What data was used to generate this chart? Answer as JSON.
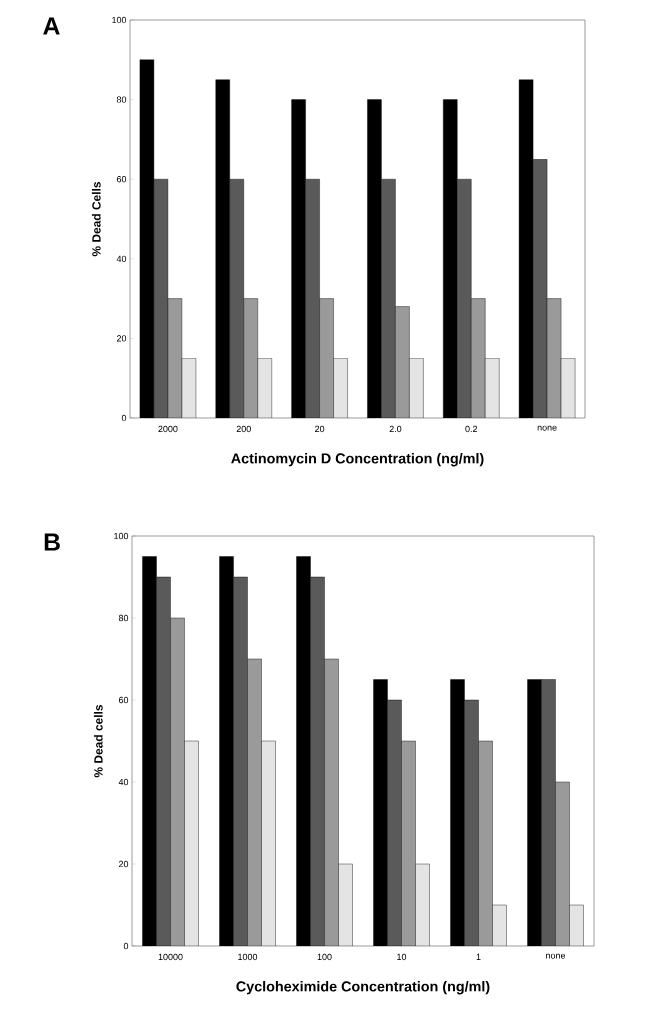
{
  "chart_data": [
    {
      "type": "bar",
      "title": "A",
      "xlabel": "Actinomycin D Concentration (ng/ml)",
      "ylabel": "% Dead Cells",
      "categories": [
        "2000",
        "200",
        "20",
        "2.0",
        "0.2",
        "none"
      ],
      "series": [
        {
          "color": "#000000",
          "values": [
            90,
            85,
            80,
            80,
            80,
            85
          ]
        },
        {
          "color": "#5a5a5a",
          "values": [
            60,
            60,
            60,
            60,
            60,
            65
          ]
        },
        {
          "color": "#9a9a9a",
          "values": [
            30,
            30,
            30,
            28,
            30,
            30
          ]
        },
        {
          "color": "#e4e4e4",
          "values": [
            15,
            15,
            15,
            15,
            15,
            15
          ]
        }
      ],
      "ylim": [
        0,
        100
      ],
      "yticks": [
        0,
        20,
        40,
        60,
        80,
        100
      ]
    },
    {
      "type": "bar",
      "title": "B",
      "xlabel": "Cycloheximide Concentration (ng/ml)",
      "ylabel": "% Dead cells",
      "categories": [
        "10000",
        "1000",
        "100",
        "10",
        "1",
        "none"
      ],
      "series": [
        {
          "color": "#000000",
          "values": [
            95,
            95,
            95,
            65,
            65,
            65
          ]
        },
        {
          "color": "#5a5a5a",
          "values": [
            90,
            90,
            90,
            60,
            60,
            65
          ]
        },
        {
          "color": "#9a9a9a",
          "values": [
            80,
            70,
            70,
            50,
            50,
            40
          ]
        },
        {
          "color": "#e4e4e4",
          "values": [
            50,
            50,
            20,
            20,
            10,
            10
          ]
        }
      ],
      "ylim": [
        0,
        100
      ],
      "yticks": [
        0,
        20,
        40,
        60,
        80,
        100
      ]
    }
  ]
}
